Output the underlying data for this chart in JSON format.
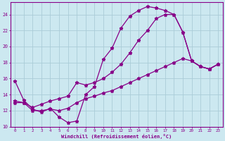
{
  "xlabel": "Windchill (Refroidissement éolien,°C)",
  "background_color": "#cce8f0",
  "grid_color": "#aaccd8",
  "line_color": "#880088",
  "xlim_min": -0.5,
  "xlim_max": 23.5,
  "ylim_min": 10,
  "ylim_max": 25.5,
  "ytick_values": [
    10,
    12,
    14,
    16,
    18,
    20,
    22,
    24
  ],
  "xtick_values": [
    0,
    1,
    2,
    3,
    4,
    5,
    6,
    7,
    8,
    9,
    10,
    11,
    12,
    13,
    14,
    15,
    16,
    17,
    18,
    19,
    20,
    21,
    22,
    23
  ],
  "line_top_x": [
    0,
    1,
    2,
    3,
    4,
    5,
    6,
    7,
    8,
    9,
    10,
    11,
    12,
    13,
    14,
    15,
    16,
    17,
    18,
    19,
    20,
    21,
    22,
    23
  ],
  "line_top_y": [
    15.7,
    13.3,
    12.2,
    11.8,
    12.3,
    11.2,
    10.5,
    10.7,
    14.0,
    15.0,
    18.4,
    19.8,
    22.3,
    23.8,
    24.5,
    25.0,
    24.8,
    24.5,
    24.0,
    21.8,
    18.2,
    17.5,
    17.2,
    17.8
  ],
  "line_mid_x": [
    0,
    1,
    2,
    3,
    4,
    5,
    6,
    7,
    8,
    9,
    10,
    11,
    12,
    13,
    14,
    15,
    16,
    17,
    18,
    19,
    20,
    21,
    22,
    23
  ],
  "line_mid_y": [
    13.2,
    13.0,
    12.4,
    12.8,
    13.2,
    13.5,
    13.8,
    15.5,
    15.2,
    15.5,
    16.0,
    16.8,
    17.8,
    19.2,
    20.8,
    22.0,
    23.5,
    24.0,
    24.0,
    21.8,
    18.2,
    17.5,
    17.2,
    17.8
  ],
  "line_bot_x": [
    0,
    1,
    2,
    3,
    4,
    5,
    6,
    7,
    8,
    9,
    10,
    11,
    12,
    13,
    14,
    15,
    16,
    17,
    18,
    19,
    20,
    21,
    22,
    23
  ],
  "line_bot_y": [
    13.0,
    13.0,
    12.0,
    12.0,
    12.2,
    12.0,
    12.3,
    13.0,
    13.5,
    13.8,
    14.2,
    14.5,
    15.0,
    15.5,
    16.0,
    16.5,
    17.0,
    17.5,
    18.0,
    18.5,
    18.2,
    17.5,
    17.2,
    17.8
  ]
}
